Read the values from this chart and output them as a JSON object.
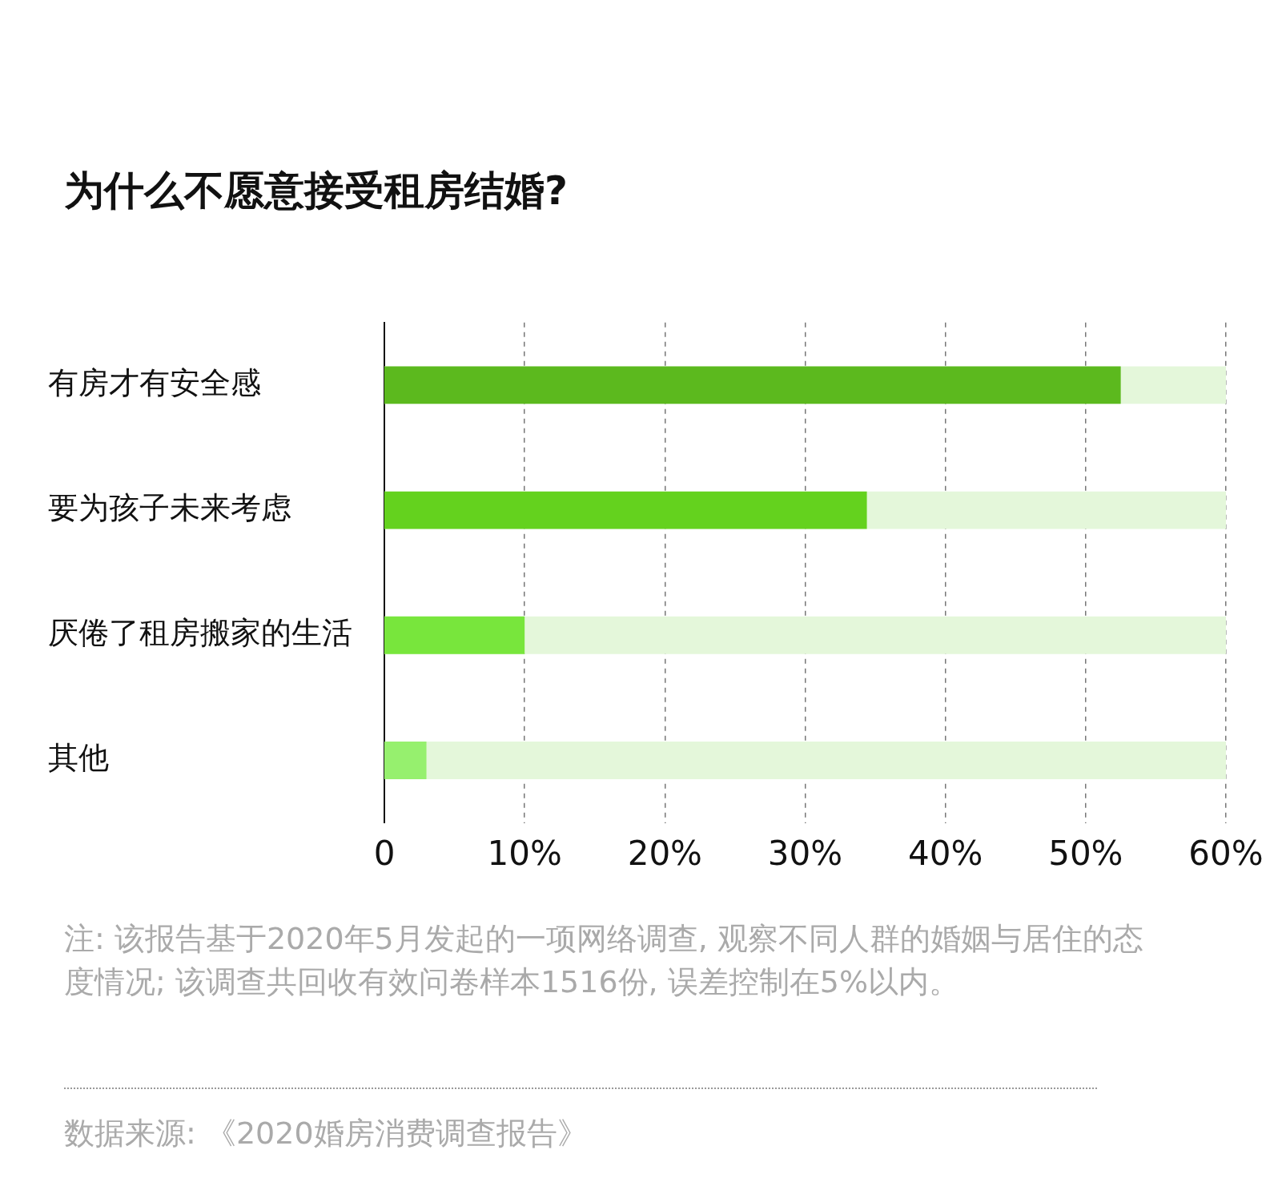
{
  "chart_data": {
    "type": "bar",
    "orientation": "horizontal",
    "title": "为什么不愿意接受租房结婚?",
    "categories": [
      "有房才有安全感",
      "要为孩子未来考虑",
      "厌倦了租房搬家的生活",
      "其他"
    ],
    "values": [
      52.5,
      34.4,
      10,
      3
    ],
    "colors": [
      "#5cb91e",
      "#64d21e",
      "#78e63c",
      "#96f06e"
    ],
    "xlim": [
      0,
      60
    ],
    "xticks": [
      0,
      {
        "value": 10,
        "label": "10%"
      },
      {
        "value": 20,
        "label": "20%"
      },
      {
        "value": 30,
        "label": "30%"
      },
      {
        "value": 40,
        "label": "40%"
      },
      {
        "value": 50,
        "label": "50%"
      },
      {
        "value": 60,
        "label": "60%"
      }
    ],
    "grid": "x",
    "legend": false,
    "annotations": [
      "注: 该报告基于2020年5月发起的一项网络调查, 观察不同人群的婚姻与居住的态度情况; 该调查共回收有效问卷样本1516份, 误差控制在5%以内。",
      "数据来源: 《2020婚房消费调查报告》"
    ]
  }
}
